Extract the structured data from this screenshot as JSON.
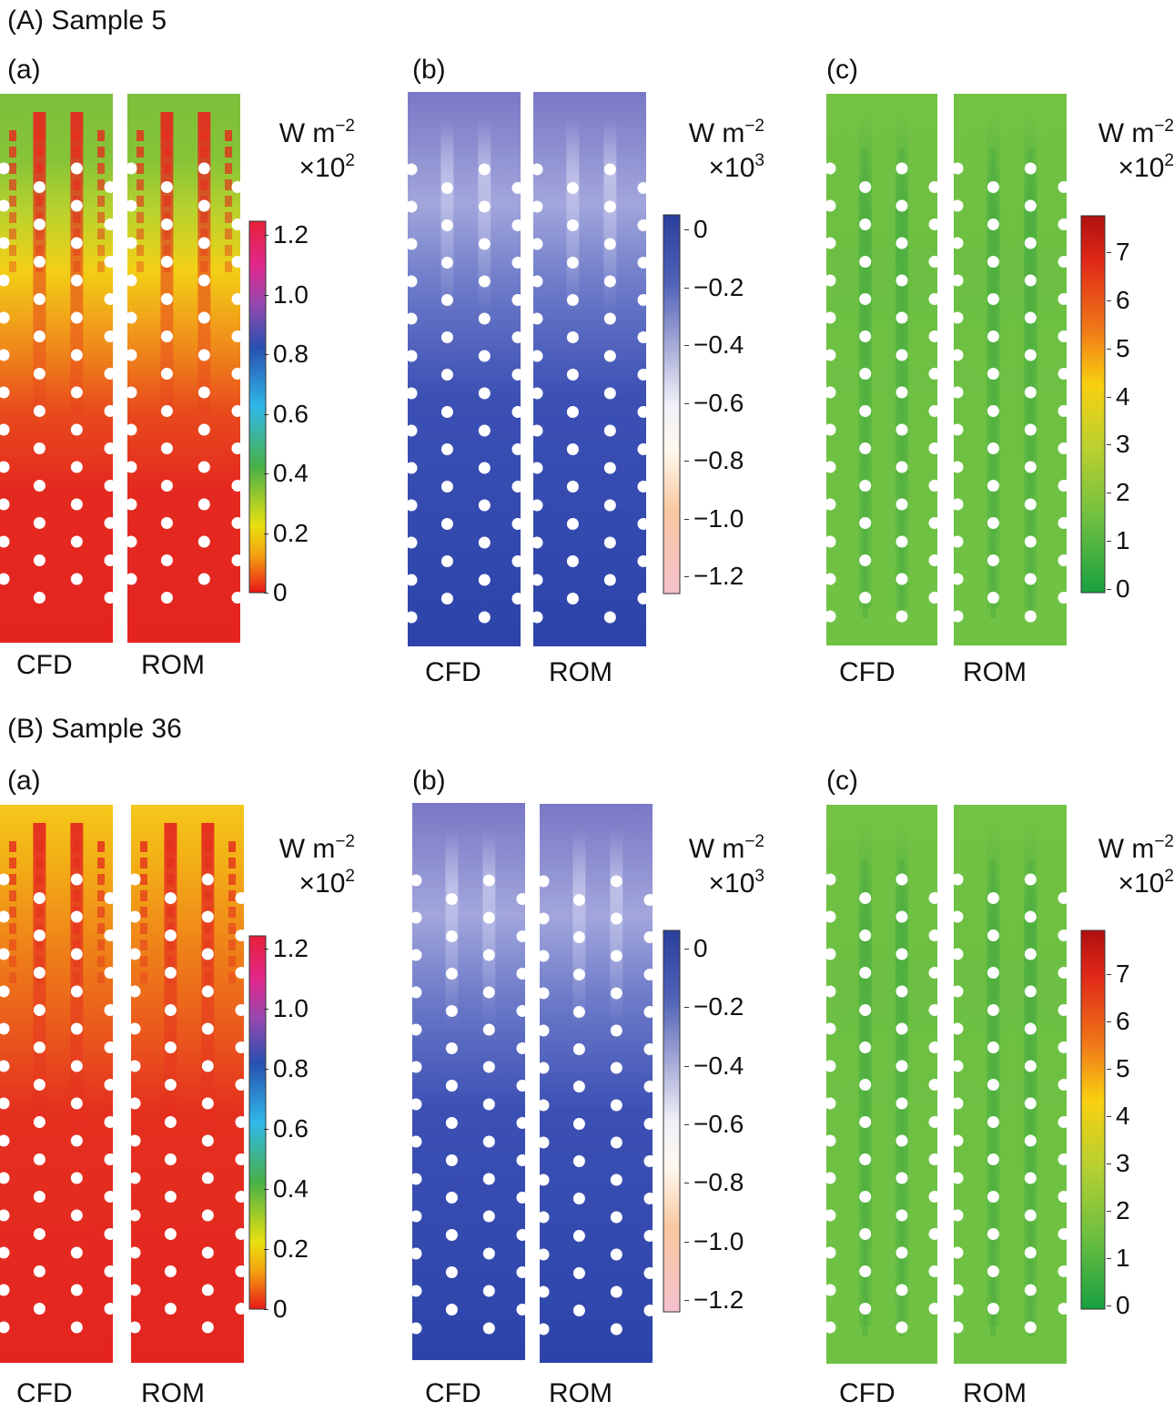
{
  "sections": [
    {
      "title": "(A) Sample 5",
      "panels": [
        {
          "label": "(a)",
          "field": "a",
          "unit_line1": "W m",
          "unit_sup1": "−2",
          "unit_line2": "×10",
          "unit_sup2": "2",
          "colorbar": {
            "ticks": [
              "1.2",
              "1.0",
              "0.8",
              "0.6",
              "0.4",
              "0.2",
              "0"
            ],
            "values": [
              1.2,
              1.0,
              0.8,
              0.6,
              0.4,
              0.2,
              0
            ],
            "range": [
              0,
              1.25
            ]
          },
          "captions": [
            "CFD",
            "ROM"
          ]
        },
        {
          "label": "(b)",
          "field": "b",
          "unit_line1": "W m",
          "unit_sup1": "−2",
          "unit_line2": "×10",
          "unit_sup2": "3",
          "colorbar": {
            "ticks": [
              "0",
              "−0.2",
              "−0.4",
              "−0.6",
              "−0.8",
              "−1.0",
              "−1.2"
            ],
            "values": [
              0,
              -0.2,
              -0.4,
              -0.6,
              -0.8,
              -1.0,
              -1.2
            ],
            "range": [
              -1.25,
              0
            ]
          },
          "captions": [
            "CFD",
            "ROM"
          ]
        },
        {
          "label": "(c)",
          "field": "c",
          "unit_line1": "W m",
          "unit_sup1": "−2",
          "unit_line2": "×10",
          "unit_sup2": "2",
          "colorbar": {
            "ticks": [
              "7",
              "6",
              "5",
              "4",
              "3",
              "2",
              "1",
              "0"
            ],
            "values": [
              7,
              6,
              5,
              4,
              3,
              2,
              1,
              0
            ],
            "range": [
              0,
              7.7
            ]
          },
          "captions": [
            "CFD",
            "ROM"
          ]
        }
      ]
    },
    {
      "title": "(B) Sample 36",
      "panels": [
        {
          "label": "(a)",
          "field": "a2",
          "unit_line1": "W m",
          "unit_sup1": "−2",
          "unit_line2": "×10",
          "unit_sup2": "2",
          "colorbar": {
            "ticks": [
              "1.2",
              "1.0",
              "0.8",
              "0.6",
              "0.4",
              "0.2",
              "0"
            ],
            "values": [
              1.2,
              1.0,
              0.8,
              0.6,
              0.4,
              0.2,
              0
            ],
            "range": [
              0,
              1.25
            ]
          },
          "captions": [
            "CFD",
            "ROM"
          ]
        },
        {
          "label": "(b)",
          "field": "b2",
          "unit_line1": "W m",
          "unit_sup1": "−2",
          "unit_line2": "×10",
          "unit_sup2": "3",
          "colorbar": {
            "ticks": [
              "0",
              "−0.2",
              "−0.4",
              "−0.6",
              "−0.8",
              "−1.0",
              "−1.2"
            ],
            "values": [
              0,
              -0.2,
              -0.4,
              -0.6,
              -0.8,
              -1.0,
              -1.2
            ],
            "range": [
              -1.25,
              0
            ]
          },
          "captions": [
            "CFD",
            "ROM"
          ]
        },
        {
          "label": "(c)",
          "field": "c2",
          "unit_line1": "W m",
          "unit_sup1": "−2",
          "unit_line2": "×10",
          "unit_sup2": "2",
          "colorbar": {
            "ticks": [
              "7",
              "6",
              "5",
              "4",
              "3",
              "2",
              "1",
              "0"
            ],
            "values": [
              7,
              6,
              5,
              4,
              3,
              2,
              1,
              0
            ],
            "range": [
              0,
              7.7
            ]
          },
          "captions": [
            "CFD",
            "ROM"
          ]
        }
      ]
    }
  ],
  "colors": {
    "field_a_sample5": [
      "#7cbf3a",
      "#b8d030",
      "#f0d018",
      "#f08a14",
      "#e42a20"
    ],
    "field_a_sample36": [
      "#f2c018",
      "#f0a016",
      "#ec6a18",
      "#e43020"
    ],
    "field_b": [
      "#8f8fd2",
      "#4f5fbe",
      "#2f46ad"
    ],
    "field_c": [
      "#6ec142",
      "#5aba40",
      "#64bd3c"
    ],
    "hole": "#ffffff"
  }
}
